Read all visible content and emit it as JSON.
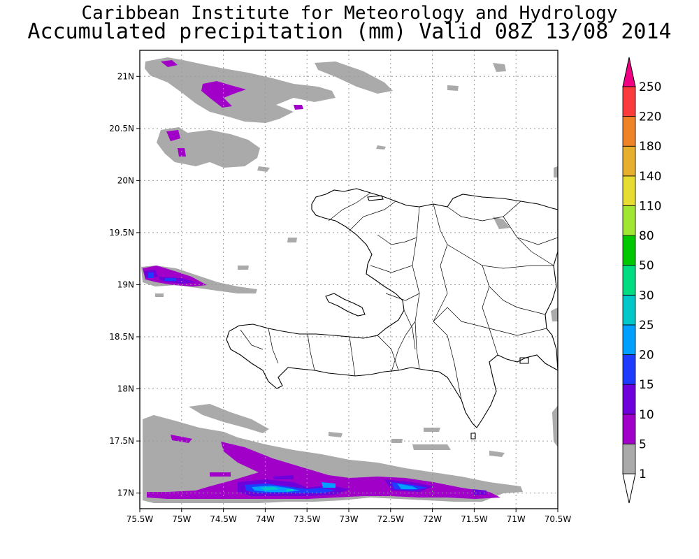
{
  "header": {
    "institute": "Caribbean Institute for Meteorology and Hydrology",
    "product": "Accumulated precipitation (mm) Valid 08Z 13/08 2014"
  },
  "map": {
    "lat_labels": [
      "21N",
      "20.5N",
      "20N",
      "19.5N",
      "19N",
      "18.5N",
      "18N",
      "17.5N",
      "17N"
    ],
    "lat_values": [
      21,
      20.5,
      20,
      19.5,
      19,
      18.5,
      18,
      17.5,
      17
    ],
    "lon_labels": [
      "75.5W",
      "75W",
      "74.5W",
      "74W",
      "73.5W",
      "73W",
      "72.5W",
      "72W",
      "71.5W",
      "71W",
      "70.5W"
    ],
    "lon_values": [
      -75.5,
      -75,
      -74.5,
      -74,
      -73.5,
      -73,
      -72.5,
      -72,
      -71.5,
      -71,
      -70.5
    ],
    "lon_range": [
      -75.5,
      -70.5
    ],
    "lat_range": [
      16.85,
      21.25
    ],
    "gridlines": "dotted",
    "region": "Hispaniola (Haiti and Dominican Republic)"
  },
  "colorbar": {
    "levels": [
      "1",
      "5",
      "10",
      "15",
      "20",
      "25",
      "30",
      "50",
      "80",
      "110",
      "140",
      "180",
      "220",
      "250"
    ],
    "colors": [
      "#aaaaaa",
      "#a000c8",
      "#6e00dc",
      "#1e3cff",
      "#00a0ff",
      "#00c8c8",
      "#00dc82",
      "#00c800",
      "#a0e632",
      "#e6dc32",
      "#e6af2d",
      "#f08228",
      "#fa3c3c",
      "#f00082"
    ],
    "under_color": "#ffffff",
    "over_color": "#f00082"
  },
  "colors": {
    "rain_light": "#aaaaaa",
    "rain_5": "#a000c8",
    "rain_10": "#6e00dc",
    "rain_20": "#00a0ff",
    "rain_25": "#00c8c8"
  }
}
